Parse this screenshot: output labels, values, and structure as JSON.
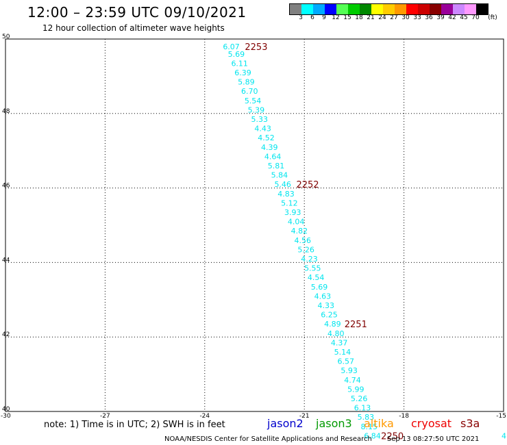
{
  "header": {
    "title": "12:00 – 23:59 UTC 09/10/2021",
    "subtitle": "12 hour collection of altimeter wave heights"
  },
  "colorbar": {
    "colors": [
      "#808080",
      "#00ffff",
      "#00aaff",
      "#0000ff",
      "#55ff55",
      "#00cc00",
      "#008800",
      "#ffff00",
      "#ffcc00",
      "#ff9900",
      "#ff0000",
      "#cc0000",
      "#880000",
      "#990099",
      "#cc88ff",
      "#ff99ff",
      "#000000"
    ],
    "labels": [
      "3",
      "6",
      "9",
      "12",
      "15",
      "18",
      "21",
      "24",
      "27",
      "30",
      "33",
      "36",
      "39",
      "42",
      "45",
      "70"
    ],
    "unit": "(ft)"
  },
  "map_data": {
    "xlim": [
      -30,
      -15
    ],
    "ylim": [
      40,
      50
    ],
    "x_ticks": [
      "-30",
      "-27",
      "-24",
      "-21",
      "-18",
      "-15"
    ],
    "y_ticks": [
      "40",
      "42",
      "44",
      "46",
      "48",
      "50"
    ],
    "track_color": "#00e5ee",
    "time_color": "#800000",
    "swh_points": [
      {
        "lon": -23.2,
        "lat": 49.8,
        "v": "6.07"
      },
      {
        "lon": -23.05,
        "lat": 49.6,
        "v": "5.69"
      },
      {
        "lon": -22.95,
        "lat": 49.35,
        "v": "6.11"
      },
      {
        "lon": -22.85,
        "lat": 49.1,
        "v": "6.39"
      },
      {
        "lon": -22.75,
        "lat": 48.85,
        "v": "5.89"
      },
      {
        "lon": -22.65,
        "lat": 48.6,
        "v": "6.70"
      },
      {
        "lon": -22.55,
        "lat": 48.35,
        "v": "5.54"
      },
      {
        "lon": -22.45,
        "lat": 48.1,
        "v": "5.39"
      },
      {
        "lon": -22.35,
        "lat": 47.85,
        "v": "5.33"
      },
      {
        "lon": -22.25,
        "lat": 47.6,
        "v": "4.43"
      },
      {
        "lon": -22.15,
        "lat": 47.35,
        "v": "4.52"
      },
      {
        "lon": -22.05,
        "lat": 47.1,
        "v": "4.39"
      },
      {
        "lon": -21.95,
        "lat": 46.85,
        "v": "4.64"
      },
      {
        "lon": -21.85,
        "lat": 46.6,
        "v": "5.81"
      },
      {
        "lon": -21.75,
        "lat": 46.35,
        "v": "5.84"
      },
      {
        "lon": -21.65,
        "lat": 46.1,
        "v": "5.46"
      },
      {
        "lon": -21.55,
        "lat": 45.85,
        "v": "4.83"
      },
      {
        "lon": -21.45,
        "lat": 45.6,
        "v": "5.12"
      },
      {
        "lon": -21.35,
        "lat": 45.35,
        "v": "3.93"
      },
      {
        "lon": -21.25,
        "lat": 45.1,
        "v": "4.04"
      },
      {
        "lon": -21.15,
        "lat": 44.85,
        "v": "4.82"
      },
      {
        "lon": -21.05,
        "lat": 44.6,
        "v": "4.56"
      },
      {
        "lon": -20.95,
        "lat": 44.35,
        "v": "5.26"
      },
      {
        "lon": -20.85,
        "lat": 44.1,
        "v": "4.23"
      },
      {
        "lon": -20.75,
        "lat": 43.85,
        "v": "5.55"
      },
      {
        "lon": -20.65,
        "lat": 43.6,
        "v": "4.54"
      },
      {
        "lon": -20.55,
        "lat": 43.35,
        "v": "5.69"
      },
      {
        "lon": -20.45,
        "lat": 43.1,
        "v": "4.63"
      },
      {
        "lon": -20.35,
        "lat": 42.85,
        "v": "4.33"
      },
      {
        "lon": -20.25,
        "lat": 42.6,
        "v": "6.25"
      },
      {
        "lon": -20.15,
        "lat": 42.35,
        "v": "4.89"
      },
      {
        "lon": -20.05,
        "lat": 42.1,
        "v": "4.80"
      },
      {
        "lon": -19.95,
        "lat": 41.85,
        "v": "4.37"
      },
      {
        "lon": -19.85,
        "lat": 41.6,
        "v": "5.14"
      },
      {
        "lon": -19.75,
        "lat": 41.35,
        "v": "6.57"
      },
      {
        "lon": -19.65,
        "lat": 41.1,
        "v": "5.93"
      },
      {
        "lon": -19.55,
        "lat": 40.85,
        "v": "4.74"
      },
      {
        "lon": -19.45,
        "lat": 40.6,
        "v": "5.99"
      },
      {
        "lon": -19.35,
        "lat": 40.35,
        "v": "5.26"
      },
      {
        "lon": -19.25,
        "lat": 40.1,
        "v": "6.13"
      },
      {
        "lon": -19.15,
        "lat": 39.85,
        "v": "5.83"
      },
      {
        "lon": -19.05,
        "lat": 39.6,
        "v": "8.15"
      },
      {
        "lon": -18.95,
        "lat": 39.35,
        "v": "6.84"
      }
    ],
    "time_labels": [
      {
        "lon": -22.45,
        "lat": 49.8,
        "v": "2253"
      },
      {
        "lon": -20.9,
        "lat": 46.1,
        "v": "2252"
      },
      {
        "lon": -19.45,
        "lat": 42.35,
        "v": "2251"
      },
      {
        "lon": -18.35,
        "lat": 39.35,
        "v": "2250"
      }
    ],
    "edge_label": {
      "lon": -15.05,
      "lat": 39.35,
      "v": "4"
    }
  },
  "note": "note:  1) Time is in UTC;  2) SWH is in feet",
  "satellites": [
    {
      "name": "jason2",
      "color": "#0000cc"
    },
    {
      "name": "jason3",
      "color": "#009900"
    },
    {
      "name": "altika",
      "color": "#ff9900"
    },
    {
      "name": "cryosat",
      "color": "#ee0000"
    },
    {
      "name": "s3a",
      "color": "#880000"
    }
  ],
  "footer": {
    "credit": "NOAA/NESDIS Center for Satellite Applications and Research",
    "timestamp": "Sep 13 08:27:50 UTC 2021"
  }
}
